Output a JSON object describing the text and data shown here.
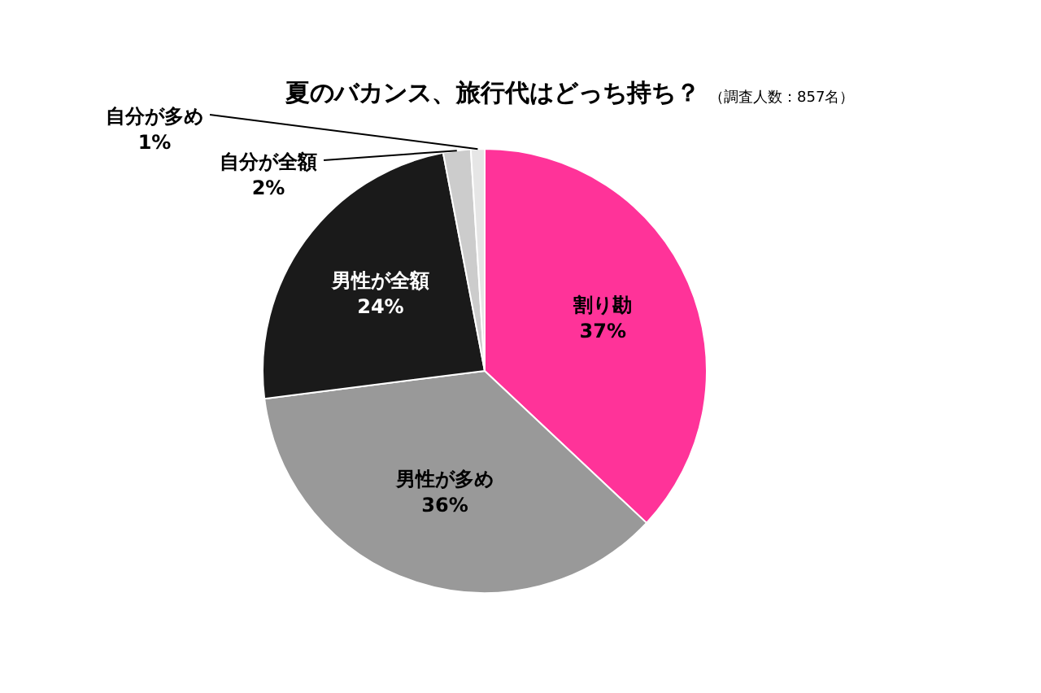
{
  "chart_data": {
    "type": "pie",
    "title": "夏のバカンス、旅行代はどっち持ち？",
    "subtitle": "（調査人数：857名）",
    "categories": [
      "割り勘",
      "男性が多め",
      "男性が全額",
      "自分が全額",
      "自分が多め"
    ],
    "values": [
      37,
      36,
      24,
      2,
      1
    ],
    "colors": [
      "#ff3399",
      "#999999",
      "#1a1a1a",
      "#cccccc",
      "#e6e6e6"
    ],
    "value_labels": [
      "37%",
      "36%",
      "24%",
      "2%",
      "1%"
    ],
    "legend": false
  }
}
